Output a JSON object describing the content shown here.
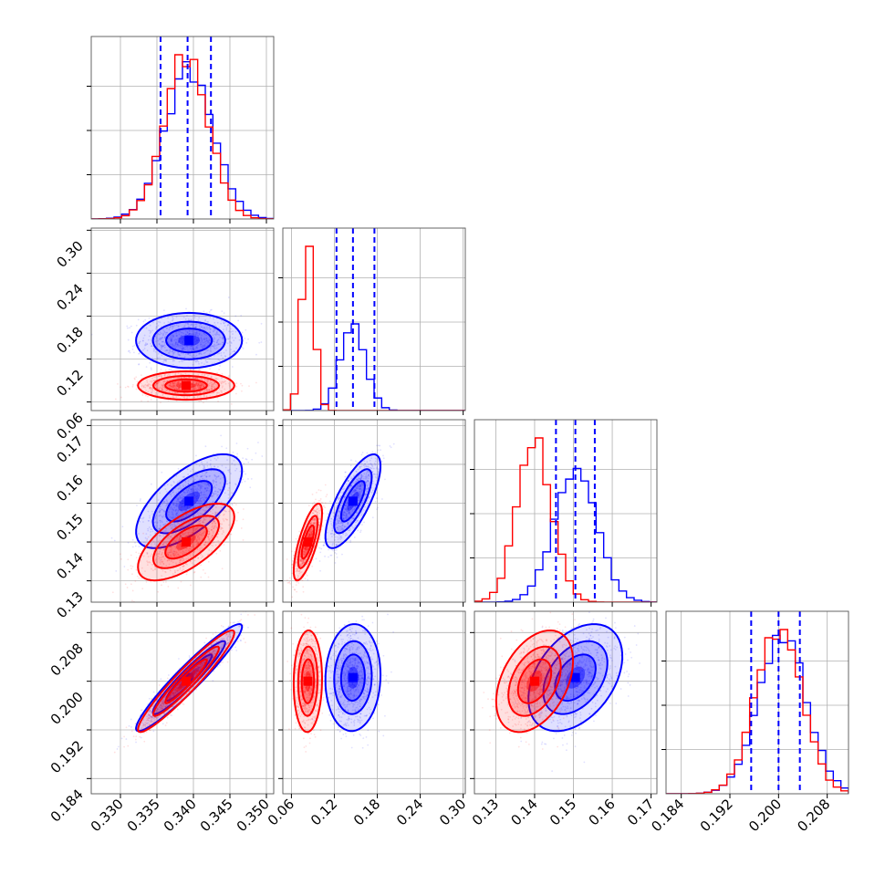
{
  "chart_data": {
    "type": "scatter",
    "subtype": "corner",
    "grid": true,
    "colors": {
      "primary": "#0000ff",
      "secondary": "#ff0000",
      "quantile": "#0000ff",
      "grid": "#b0b0b0"
    },
    "parameters": [
      {
        "range": [
          0.326,
          0.351
        ],
        "ticks": [
          "0.330",
          "0.335",
          "0.340",
          "0.345",
          "0.350"
        ],
        "tick_values": [
          0.33,
          0.335,
          0.34,
          0.345,
          0.35
        ]
      },
      {
        "range": [
          0.048,
          0.303
        ],
        "ticks": [
          "0.06",
          "0.12",
          "0.18",
          "0.24",
          "0.30"
        ],
        "tick_values": [
          0.06,
          0.12,
          0.18,
          0.24,
          0.3
        ]
      },
      {
        "range": [
          0.1245,
          0.1715
        ],
        "ticks": [
          "0.13",
          "0.14",
          "0.15",
          "0.16",
          "0.17"
        ],
        "tick_values": [
          0.13,
          0.14,
          0.15,
          0.16,
          0.17
        ]
      },
      {
        "range": [
          0.1815,
          0.2115
        ],
        "ticks": [
          "0.184",
          "0.192",
          "0.200",
          "0.208"
        ],
        "tick_values": [
          0.184,
          0.192,
          0.2,
          0.208
        ]
      }
    ],
    "quantiles_blue": [
      [
        0.3355,
        0.3392,
        0.3424
      ],
      [
        0.123,
        0.146,
        0.176
      ],
      [
        0.1455,
        0.1505,
        0.1555
      ],
      [
        0.1955,
        0.2,
        0.2035
      ]
    ],
    "series": [
      {
        "color": "#0000ff",
        "mean": [
          0.3394,
          0.146,
          0.1505,
          0.2006
        ],
        "sd": [
          0.0033,
          0.0175,
          0.0055,
          0.004
        ],
        "corr": [
          [
            1.0,
            0.0,
            0.65,
            0.95
          ],
          [
            0.0,
            1.0,
            0.75,
            0.05
          ],
          [
            0.65,
            0.75,
            1.0,
            0.4
          ],
          [
            0.95,
            0.05,
            0.4,
            1.0
          ]
        ]
      },
      {
        "color": "#ff0000",
        "mean": [
          0.339,
          0.083,
          0.14,
          0.2
        ],
        "sd": [
          0.003,
          0.009,
          0.0045,
          0.0038
        ],
        "corr": [
          [
            1.0,
            0.0,
            0.65,
            0.95
          ],
          [
            0.0,
            1.0,
            0.75,
            0.05
          ],
          [
            0.65,
            0.75,
            1.0,
            0.4
          ],
          [
            0.95,
            0.05,
            0.4,
            1.0
          ]
        ]
      }
    ]
  }
}
